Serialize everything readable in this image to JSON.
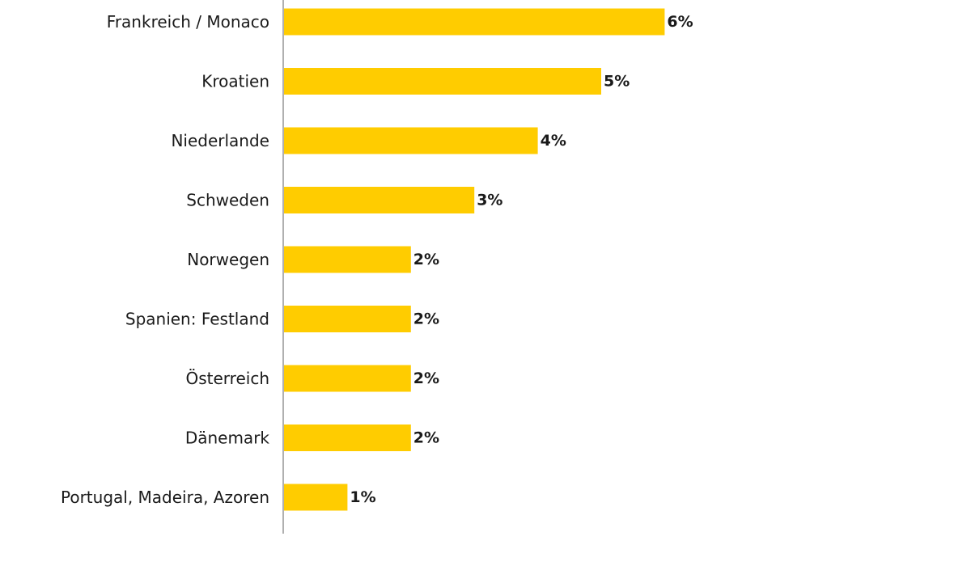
{
  "chart_data": {
    "type": "bar",
    "orientation": "horizontal",
    "categories": [
      "Frankreich / Monaco",
      "Kroatien",
      "Niederlande",
      "Schweden",
      "Norwegen",
      "Spanien: Festland",
      "Österreich",
      "Dänemark",
      "Portugal, Madeira, Azoren"
    ],
    "values": [
      6,
      5,
      4,
      3,
      2,
      2,
      2,
      2,
      1
    ],
    "value_labels": [
      "6%",
      "5%",
      "4%",
      "3%",
      "2%",
      "2%",
      "2%",
      "2%",
      "1%"
    ],
    "unit": "%",
    "xlim": [
      0,
      6
    ],
    "grid": false,
    "legend": "none",
    "bar_color": "#FFCC00",
    "axis_color": "#b0b0b0"
  }
}
